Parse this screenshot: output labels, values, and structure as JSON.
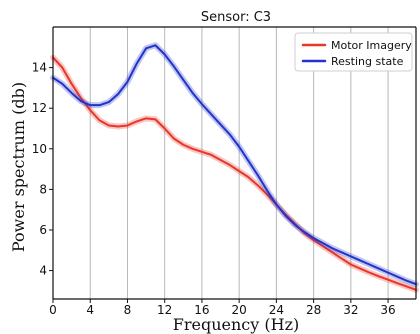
{
  "chart_data": {
    "type": "line",
    "title": "Sensor: C3",
    "xlabel": "Frequency (Hz)",
    "ylabel": "Power spectrum (db)",
    "xlim": [
      0,
      39
    ],
    "ylim": [
      2.6,
      16.0
    ],
    "x_ticks": [
      0,
      4,
      8,
      12,
      16,
      20,
      24,
      28,
      32,
      36
    ],
    "y_ticks": [
      4,
      6,
      8,
      10,
      12,
      14
    ],
    "grid": {
      "x": true,
      "y": false,
      "color": "#b8b8b8"
    },
    "legend_position": "top-right",
    "series": [
      {
        "name": "Motor Imagery",
        "color": "#e8372a",
        "band": true,
        "points": [
          [
            0,
            14.5
          ],
          [
            1,
            14.0
          ],
          [
            2,
            13.2
          ],
          [
            3,
            12.5
          ],
          [
            4,
            11.9
          ],
          [
            5,
            11.4
          ],
          [
            6,
            11.15
          ],
          [
            7,
            11.1
          ],
          [
            8,
            11.15
          ],
          [
            9,
            11.35
          ],
          [
            10,
            11.5
          ],
          [
            11,
            11.45
          ],
          [
            12,
            11.0
          ],
          [
            13,
            10.5
          ],
          [
            14,
            10.2
          ],
          [
            15,
            10.0
          ],
          [
            16,
            9.85
          ],
          [
            17,
            9.7
          ],
          [
            18,
            9.45
          ],
          [
            19,
            9.2
          ],
          [
            20,
            8.9
          ],
          [
            21,
            8.6
          ],
          [
            22,
            8.2
          ],
          [
            23,
            7.75
          ],
          [
            24,
            7.25
          ],
          [
            25,
            6.75
          ],
          [
            26,
            6.3
          ],
          [
            27,
            5.85
          ],
          [
            28,
            5.5
          ],
          [
            29,
            5.2
          ],
          [
            30,
            4.9
          ],
          [
            31,
            4.6
          ],
          [
            32,
            4.3
          ],
          [
            33,
            4.1
          ],
          [
            34,
            3.9
          ],
          [
            35,
            3.72
          ],
          [
            36,
            3.55
          ],
          [
            37,
            3.38
          ],
          [
            38,
            3.22
          ],
          [
            39,
            3.05
          ]
        ]
      },
      {
        "name": "Resting state",
        "color": "#2233cc",
        "band": true,
        "points": [
          [
            0,
            13.5
          ],
          [
            1,
            13.2
          ],
          [
            2,
            12.75
          ],
          [
            3,
            12.35
          ],
          [
            4,
            12.15
          ],
          [
            5,
            12.15
          ],
          [
            6,
            12.3
          ],
          [
            7,
            12.7
          ],
          [
            8,
            13.3
          ],
          [
            9,
            14.2
          ],
          [
            10,
            14.95
          ],
          [
            11,
            15.1
          ],
          [
            12,
            14.65
          ],
          [
            13,
            14.05
          ],
          [
            14,
            13.4
          ],
          [
            15,
            12.75
          ],
          [
            16,
            12.2
          ],
          [
            17,
            11.7
          ],
          [
            18,
            11.2
          ],
          [
            19,
            10.7
          ],
          [
            20,
            10.1
          ],
          [
            21,
            9.4
          ],
          [
            22,
            8.7
          ],
          [
            23,
            7.95
          ],
          [
            24,
            7.25
          ],
          [
            25,
            6.7
          ],
          [
            26,
            6.25
          ],
          [
            27,
            5.9
          ],
          [
            28,
            5.6
          ],
          [
            29,
            5.35
          ],
          [
            30,
            5.1
          ],
          [
            31,
            4.9
          ],
          [
            32,
            4.7
          ],
          [
            33,
            4.5
          ],
          [
            34,
            4.3
          ],
          [
            35,
            4.1
          ],
          [
            36,
            3.9
          ],
          [
            37,
            3.7
          ],
          [
            38,
            3.5
          ],
          [
            39,
            3.33
          ]
        ]
      }
    ]
  }
}
